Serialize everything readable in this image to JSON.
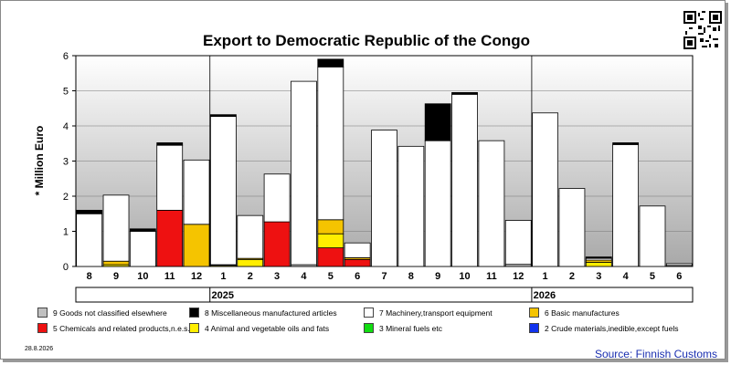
{
  "colors": {
    "cat9": "#c0c0c0",
    "cat8": "#000000",
    "cat7": "#ffffff",
    "cat6": "#f5c400",
    "cat5": "#ee1111",
    "cat4": "#ffee00",
    "cat3": "#11dd11",
    "cat2": "#1133ee"
  },
  "footer": {
    "date": "28.8.2026",
    "source": "Source: Finnish Customs"
  },
  "legend": [
    {
      "key": "cat9",
      "label": "9 Goods not classified elsewhere"
    },
    {
      "key": "cat8",
      "label": "8 Miscellaneous manufactured articles"
    },
    {
      "key": "cat7",
      "label": "7 Machinery,transport equipment"
    },
    {
      "key": "cat6",
      "label": "6 Basic manufactures"
    },
    {
      "key": "cat5",
      "label": "5 Chemicals and related products,n.e.s."
    },
    {
      "key": "cat4",
      "label": "4 Animal and vegetable oils and fats"
    },
    {
      "key": "cat3",
      "label": "3 Mineral fuels etc"
    },
    {
      "key": "cat2",
      "label": "2 Crude materials,inedible,except fuels"
    }
  ],
  "chart_data": {
    "type": "bar",
    "stacked": true,
    "title": "Export to Democratic Republic of the Congo",
    "ylabel": "* Million Euro",
    "ylim": [
      0,
      6
    ],
    "yticks": [
      0,
      1,
      2,
      3,
      4,
      5,
      6
    ],
    "grid": true,
    "categories": [
      "8",
      "9",
      "10",
      "11",
      "12",
      "1",
      "2",
      "3",
      "4",
      "5",
      "6",
      "7",
      "8",
      "9",
      "10",
      "11",
      "12",
      "1",
      "2",
      "3",
      "4",
      "5",
      "6"
    ],
    "year_groups": [
      {
        "label": "2025",
        "start": 5,
        "end": 16
      },
      {
        "label": "2026",
        "start": 17,
        "end": 22
      }
    ],
    "series": [
      {
        "name": "2 Crude materials,inedible,except fuels",
        "key": "cat2",
        "values": [
          0,
          0,
          0,
          0,
          0,
          0,
          0,
          0,
          0,
          0,
          0,
          0,
          0,
          0,
          0,
          0,
          0,
          0,
          0,
          0,
          0,
          0,
          0
        ]
      },
      {
        "name": "3 Mineral fuels etc",
        "key": "cat3",
        "values": [
          0,
          0,
          0,
          0,
          0,
          0,
          0,
          0,
          0,
          0,
          0,
          0,
          0,
          0,
          0,
          0,
          0,
          0,
          0,
          0,
          0,
          0,
          0
        ]
      },
      {
        "name": "4 Animal and vegetable oils and fats",
        "key": "cat4",
        "values": [
          0,
          0.05,
          0,
          0,
          0,
          0.03,
          0.2,
          0,
          0,
          0.4,
          0,
          0,
          0,
          0,
          0,
          0,
          0,
          0,
          0,
          0.12,
          0,
          0,
          0
        ]
      },
      {
        "name": "5 Chemicals and related products,n.e.s.",
        "key": "cat5",
        "values": [
          0,
          0,
          0,
          1.6,
          0,
          0,
          0,
          1.27,
          0,
          0.53,
          0.2,
          0,
          0,
          0,
          0,
          0,
          0,
          0,
          0,
          0,
          0,
          0,
          0
        ]
      },
      {
        "name": "6 Basic manufactures",
        "key": "cat6",
        "values": [
          0,
          0.1,
          0,
          0,
          1.2,
          0.02,
          0.03,
          0,
          0,
          0.4,
          0.05,
          0,
          0,
          0,
          0,
          0,
          0,
          0,
          0,
          0.06,
          0,
          0,
          0
        ]
      },
      {
        "name": "7 Machinery,transport equipment",
        "key": "cat7",
        "values": [
          1.5,
          1.88,
          1.0,
          1.85,
          1.83,
          4.22,
          1.22,
          1.36,
          5.22,
          4.35,
          0.42,
          3.88,
          3.42,
          3.58,
          4.9,
          3.58,
          1.25,
          4.37,
          2.22,
          0.05,
          3.47,
          1.72,
          0.05
        ]
      },
      {
        "name": "8 Miscellaneous manufactured articles",
        "key": "cat8",
        "values": [
          0.1,
          0,
          0.07,
          0.07,
          0,
          0.05,
          0,
          0,
          0,
          0.22,
          0,
          0,
          0,
          1.05,
          0.05,
          0,
          0,
          0,
          0,
          0.04,
          0.05,
          0,
          0
        ]
      },
      {
        "name": "9 Goods not classified elsewhere",
        "key": "cat9",
        "values": [
          0,
          0,
          0,
          0,
          0,
          0,
          0,
          0,
          0.05,
          0,
          0,
          0,
          0,
          0,
          0,
          0,
          0.06,
          0,
          0,
          0,
          0,
          0,
          0.03
        ]
      }
    ]
  }
}
